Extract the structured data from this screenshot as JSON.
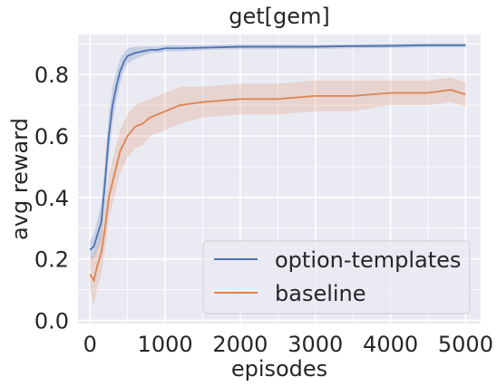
{
  "chart_data": {
    "type": "line",
    "title": "get[gem]",
    "xlabel": "episodes",
    "ylabel": "avg reward",
    "xlim": [
      -160,
      5200
    ],
    "ylim": [
      -0.01,
      0.93
    ],
    "xticks": [
      0,
      1000,
      2000,
      3000,
      4000,
      5000
    ],
    "xtick_labels": [
      "0",
      "1000",
      "2000",
      "3000",
      "4000",
      "5000"
    ],
    "yticks": [
      0.0,
      0.2,
      0.4,
      0.6,
      0.8
    ],
    "ytick_labels": [
      "0.0",
      "0.2",
      "0.4",
      "0.6",
      "0.8"
    ],
    "grid": true,
    "background": "#eaeaf2",
    "legend_position": "bottom-right",
    "series": [
      {
        "name": "option-templates",
        "color": "#4c72b0",
        "x": [
          0,
          50,
          100,
          150,
          200,
          250,
          300,
          350,
          400,
          450,
          500,
          600,
          700,
          800,
          900,
          1000,
          1200,
          1500,
          2000,
          2500,
          3000,
          3500,
          4000,
          4500,
          5000
        ],
        "y": [
          0.23,
          0.24,
          0.28,
          0.32,
          0.45,
          0.6,
          0.7,
          0.76,
          0.81,
          0.84,
          0.86,
          0.87,
          0.875,
          0.88,
          0.88,
          0.885,
          0.885,
          0.887,
          0.89,
          0.89,
          0.89,
          0.892,
          0.893,
          0.895,
          0.895
        ],
        "band": [
          0.03,
          0.04,
          0.05,
          0.06,
          0.07,
          0.07,
          0.06,
          0.05,
          0.04,
          0.03,
          0.025,
          0.02,
          0.015,
          0.012,
          0.01,
          0.01,
          0.01,
          0.008,
          0.008,
          0.008,
          0.007,
          0.007,
          0.007,
          0.007,
          0.007
        ]
      },
      {
        "name": "baseline",
        "color": "#dd8452",
        "x": [
          0,
          50,
          100,
          150,
          200,
          250,
          300,
          350,
          400,
          500,
          600,
          700,
          800,
          900,
          1000,
          1200,
          1500,
          2000,
          2500,
          3000,
          3500,
          4000,
          4500,
          4800,
          5000
        ],
        "y": [
          0.15,
          0.13,
          0.18,
          0.22,
          0.3,
          0.4,
          0.45,
          0.5,
          0.55,
          0.6,
          0.63,
          0.64,
          0.66,
          0.67,
          0.68,
          0.7,
          0.71,
          0.72,
          0.72,
          0.73,
          0.73,
          0.74,
          0.74,
          0.75,
          0.735
        ],
        "band": [
          0.05,
          0.08,
          0.07,
          0.07,
          0.07,
          0.07,
          0.07,
          0.07,
          0.07,
          0.07,
          0.07,
          0.07,
          0.06,
          0.06,
          0.06,
          0.06,
          0.05,
          0.05,
          0.05,
          0.05,
          0.05,
          0.04,
          0.04,
          0.04,
          0.04
        ]
      }
    ]
  }
}
